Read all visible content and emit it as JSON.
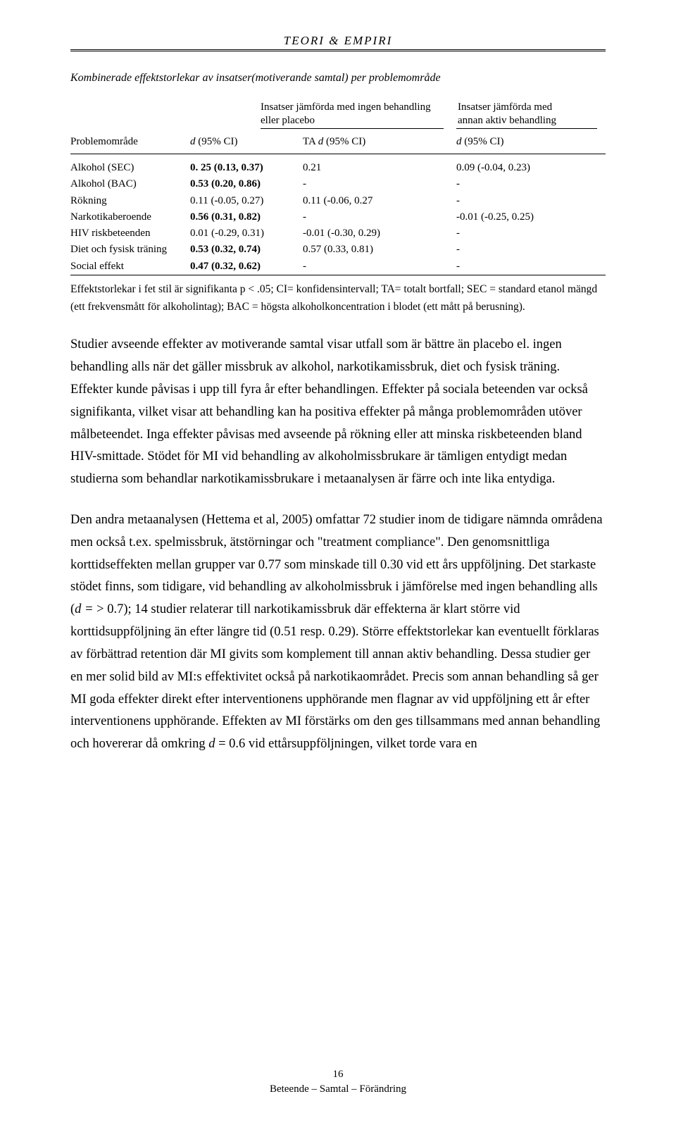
{
  "header": "TEORI & EMPIRI",
  "table": {
    "title": "Kombinerade effektstorlekar av insatser(motiverande samtal) per problemområde",
    "comparison": {
      "left_line1": "Insatser jämförda med ingen behandling",
      "left_line2": "eller placebo",
      "right_line1": "Insatser jämförda med",
      "right_line2": "annan aktiv behandling"
    },
    "columns": {
      "problem": "Problemområde",
      "d1": "d (95% CI)",
      "ta": "TA d (95% CI)",
      "d2": "d (95% CI)"
    },
    "rows": [
      {
        "label": "Alkohol (SEC)",
        "d1": "0. 25 (0.13, 0.37)",
        "ta": "0.21",
        "d2": "0.09 (-0.04, 0.23)",
        "bold": true
      },
      {
        "label": "Alkohol (BAC)",
        "d1": "0.53 (0.20, 0.86)",
        "ta": "-",
        "d2": "-",
        "bold": true
      },
      {
        "label": "Rökning",
        "d1": "0.11 (-0.05, 0.27)",
        "ta": "0.11 (-0.06, 0.27",
        "d2": "-",
        "bold": false
      },
      {
        "label": "Narkotikaberoende",
        "d1": "0.56 (0.31, 0.82)",
        "ta": "-",
        "d2": "-0.01 (-0.25, 0.25)",
        "bold": true
      },
      {
        "label": "HIV riskbeteenden",
        "d1": "0.01 (-0.29, 0.31)",
        "ta": "-0.01 (-0.30, 0.29)",
        "d2": "-",
        "bold": false
      },
      {
        "label": "Diet och fysisk träning",
        "d1": "0.53 (0.32, 0.74)",
        "ta": "0.57 (0.33, 0.81)",
        "d2": "-",
        "bold": true
      },
      {
        "label": "Social effekt",
        "d1": "0.47 (0.32, 0.62)",
        "ta": "-",
        "d2": "-",
        "bold": true
      }
    ],
    "note": "Effektstorlekar i fet stil är signifikanta p < .05; CI= konfidensintervall; TA= totalt bortfall; SEC = standard etanol mängd (ett frekvensmått för alkoholintag); BAC = högsta alkoholkoncentration i blodet (ett mått på berusning)."
  },
  "para1": "Studier avseende effekter av motiverande samtal visar utfall som är bättre än placebo el. ingen behandling alls när det gäller missbruk av alkohol, narkotikamissbruk, diet och fysisk träning. Effekter kunde påvisas i upp till fyra år efter behandlingen. Effekter på sociala beteenden var också signifikanta, vilket visar att behandling kan ha positiva effekter på många problemområden utöver målbeteendet. Inga effekter påvisas med avseende på rökning eller att minska riskbeteenden bland HIV-smittade. Stödet för MI vid behandling av alkoholmissbrukare är tämligen entydigt medan studierna som behandlar narkotikamissbrukare i metaanalysen är färre och inte lika entydiga.",
  "para2_a": "Den andra metaanalysen (Hettema et al, 2005) omfattar 72 studier inom de tidigare nämnda områdena men också t.ex. spelmissbruk, ätstörningar och \"treatment compliance\". Den genomsnittliga korttidseffekten mellan grupper var 0.77 som minskade till 0.30 vid ett års uppföljning. Det starkaste stödet finns, som tidigare, vid behandling av alkoholmissbruk i jämförelse med ingen behandling alls (",
  "para2_ital": "d =",
  "para2_b": " > 0.7); 14 studier relaterar till narkotikamissbruk där effekterna är klart större vid korttidsuppföljning än efter längre tid (0.51 resp. 0.29). Större effektstorlekar kan eventuellt förklaras av förbättrad retention där MI givits som komplement till annan aktiv behandling. Dessa studier ger en mer solid bild av MI:s effektivitet också på narkotikaområdet. Precis som annan behandling så ger MI goda effekter direkt efter interventionens upphörande men flagnar av vid uppföljning ett år efter interventionens upphörande. Effekten av MI förstärks om den ges tillsammans med annan behandling och hovererar då omkring ",
  "para2_ital2": "d",
  "para2_c": " = 0.6 vid ettårsuppföljningen, vilket torde vara en",
  "footer": {
    "page": "16",
    "line": "Beteende – Samtal – Förändring"
  },
  "d1_italic": "d",
  "d1_rest": " (95% CI)",
  "ta_text": "TA ",
  "ta_italic": "d",
  "ta_rest": " (95% CI)",
  "d2_italic": "d",
  "d2_rest": " (95% CI)"
}
